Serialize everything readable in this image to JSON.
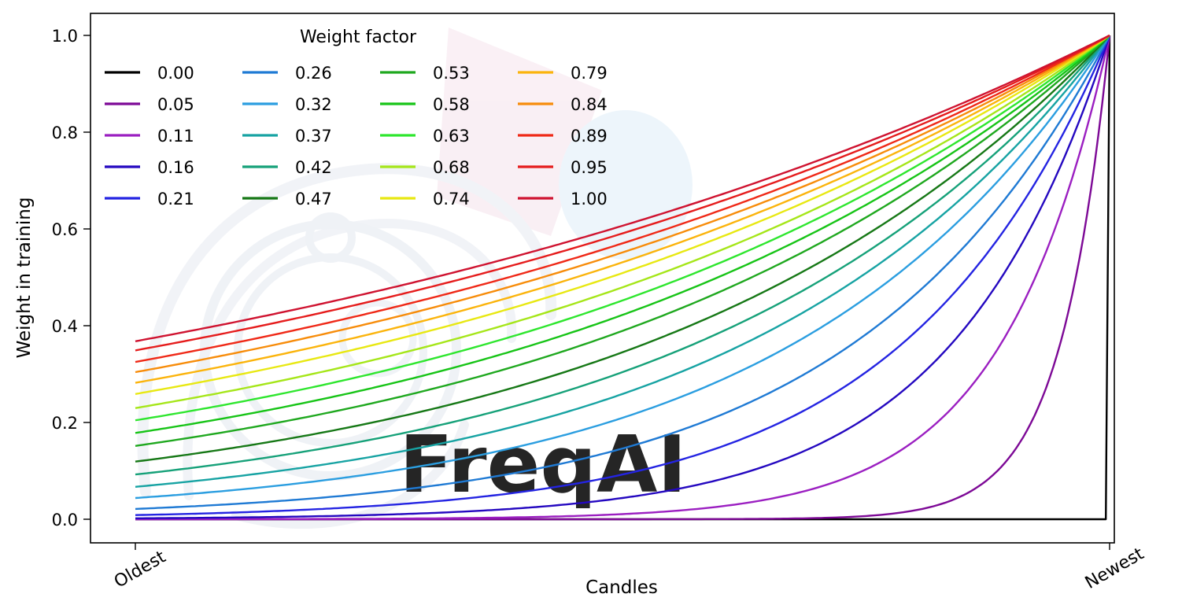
{
  "chart_data": {
    "type": "line",
    "title": "",
    "xlabel": "Candles",
    "ylabel": "Weight in training",
    "watermark": "FreqAI",
    "x_range": [
      0,
      1
    ],
    "ylim": [
      0,
      1
    ],
    "grid": false,
    "x_tick_labels": [
      "Oldest",
      "Newest"
    ],
    "y_ticks": [
      0.0,
      0.2,
      0.4,
      0.6,
      0.8,
      1.0
    ],
    "y_tick_labels": [
      "0.0",
      "0.2",
      "0.4",
      "0.6",
      "0.8",
      "1.0"
    ],
    "legend": {
      "title": "Weight factor",
      "position": "upper left",
      "columns": 4,
      "rows": 5,
      "fill_order": "column-major"
    },
    "formula": "weight(x) = exp(-(1 - x) / weight_factor), x in [0,1] from Oldest to Newest",
    "samples_x": [
      0,
      0.25,
      0.5,
      0.75,
      1
    ],
    "series": [
      {
        "name": "0.00",
        "weight_factor": 0.0,
        "color": "#000000",
        "samples_y": [
          0,
          0,
          0,
          0,
          1
        ]
      },
      {
        "name": "0.05",
        "weight_factor": 0.05,
        "color": "#7d0996",
        "samples_y": [
          0,
          0,
          0,
          0.007,
          1
        ]
      },
      {
        "name": "0.11",
        "weight_factor": 0.11,
        "color": "#9b1fc1",
        "samples_y": [
          0,
          0.001,
          0.011,
          0.103,
          1
        ]
      },
      {
        "name": "0.16",
        "weight_factor": 0.16,
        "color": "#2408c0",
        "samples_y": [
          0.002,
          0.009,
          0.044,
          0.21,
          1
        ]
      },
      {
        "name": "0.21",
        "weight_factor": 0.21,
        "color": "#2424e2",
        "samples_y": [
          0.009,
          0.028,
          0.092,
          0.304,
          1
        ]
      },
      {
        "name": "0.26",
        "weight_factor": 0.26,
        "color": "#1f7ad4",
        "samples_y": [
          0.021,
          0.056,
          0.146,
          0.382,
          1
        ]
      },
      {
        "name": "0.32",
        "weight_factor": 0.32,
        "color": "#2b9ee0",
        "samples_y": [
          0.044,
          0.096,
          0.21,
          0.458,
          1
        ]
      },
      {
        "name": "0.37",
        "weight_factor": 0.37,
        "color": "#17a3a3",
        "samples_y": [
          0.067,
          0.132,
          0.259,
          0.509,
          1
        ]
      },
      {
        "name": "0.42",
        "weight_factor": 0.42,
        "color": "#16a179",
        "samples_y": [
          0.092,
          0.168,
          0.304,
          0.551,
          1
        ]
      },
      {
        "name": "0.47",
        "weight_factor": 0.47,
        "color": "#167816",
        "samples_y": [
          0.119,
          0.203,
          0.345,
          0.587,
          1
        ]
      },
      {
        "name": "0.53",
        "weight_factor": 0.53,
        "color": "#1fa81f",
        "samples_y": [
          0.152,
          0.243,
          0.389,
          0.624,
          1
        ]
      },
      {
        "name": "0.58",
        "weight_factor": 0.58,
        "color": "#17c417",
        "samples_y": [
          0.178,
          0.274,
          0.422,
          0.65,
          1
        ]
      },
      {
        "name": "0.63",
        "weight_factor": 0.63,
        "color": "#2ee62e",
        "samples_y": [
          0.204,
          0.304,
          0.452,
          0.672,
          1
        ]
      },
      {
        "name": "0.68",
        "weight_factor": 0.68,
        "color": "#a5e619",
        "samples_y": [
          0.23,
          0.332,
          0.479,
          0.692,
          1
        ]
      },
      {
        "name": "0.74",
        "weight_factor": 0.74,
        "color": "#e8e812",
        "samples_y": [
          0.259,
          0.363,
          0.509,
          0.713,
          1
        ]
      },
      {
        "name": "0.79",
        "weight_factor": 0.79,
        "color": "#fbb40c",
        "samples_y": [
          0.282,
          0.387,
          0.531,
          0.729,
          1
        ]
      },
      {
        "name": "0.84",
        "weight_factor": 0.84,
        "color": "#f78c0a",
        "samples_y": [
          0.304,
          0.409,
          0.551,
          0.742,
          1
        ]
      },
      {
        "name": "0.89",
        "weight_factor": 0.89,
        "color": "#ef2917",
        "samples_y": [
          0.325,
          0.431,
          0.57,
          0.755,
          1
        ]
      },
      {
        "name": "0.95",
        "weight_factor": 0.95,
        "color": "#e51c1c",
        "samples_y": [
          0.349,
          0.454,
          0.591,
          0.769,
          1
        ]
      },
      {
        "name": "1.00",
        "weight_factor": 1.0,
        "color": "#cf1330",
        "samples_y": [
          0.368,
          0.472,
          0.607,
          0.779,
          1
        ]
      }
    ]
  }
}
